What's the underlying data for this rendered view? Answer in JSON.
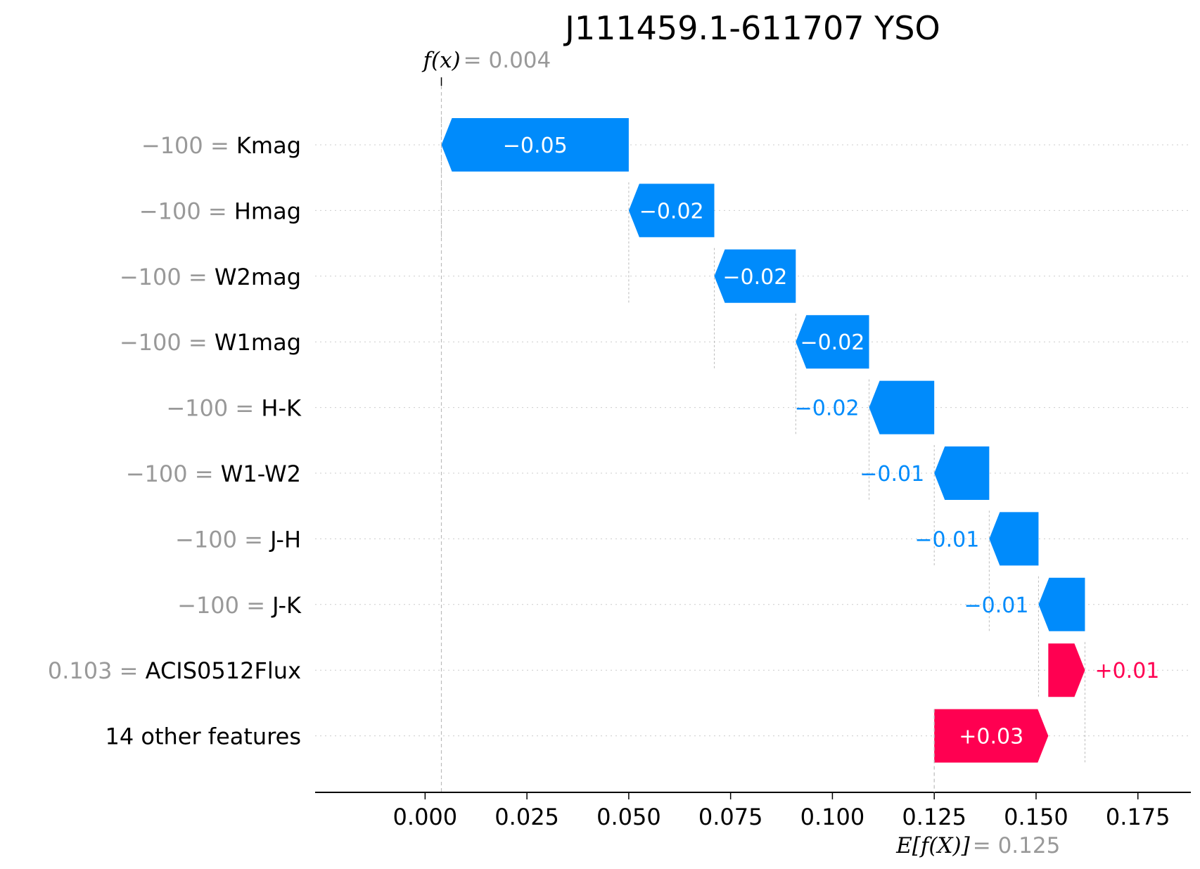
{
  "chart_data": {
    "type": "waterfall",
    "title": "J111459.1-611707 YSO",
    "fx_symbol": "f(x)",
    "fx_value": "0.004",
    "efx_symbol": "E[f(X)]",
    "efx_value": "0.125",
    "base_value": 0.125,
    "final_value": 0.004,
    "xlim": [
      -0.027,
      0.188
    ],
    "xticks": [
      0.0,
      0.025,
      0.05,
      0.075,
      0.1,
      0.125,
      0.15,
      0.175
    ],
    "xtick_labels": [
      "0.000",
      "0.025",
      "0.050",
      "0.075",
      "0.100",
      "0.125",
      "0.150",
      "0.175"
    ],
    "colors": {
      "negative": "#008bfb",
      "positive": "#ff0051"
    },
    "features": [
      {
        "name": "Kmag",
        "value": "−100",
        "start": 0.05,
        "end": 0.004,
        "label": "−0.05",
        "label_inside": true
      },
      {
        "name": "Hmag",
        "value": "−100",
        "start": 0.071,
        "end": 0.05,
        "label": "−0.02",
        "label_inside": true
      },
      {
        "name": "W2mag",
        "value": "−100",
        "start": 0.091,
        "end": 0.071,
        "label": "−0.02",
        "label_inside": true
      },
      {
        "name": "W1mag",
        "value": "−100",
        "start": 0.109,
        "end": 0.091,
        "label": "−0.02",
        "label_inside": true
      },
      {
        "name": "H-K",
        "value": "−100",
        "start": 0.125,
        "end": 0.109,
        "label": "−0.02",
        "label_inside": false
      },
      {
        "name": "W1-W2",
        "value": "−100",
        "start": 0.1385,
        "end": 0.125,
        "label": "−0.01",
        "label_inside": false
      },
      {
        "name": "J-H",
        "value": "−100",
        "start": 0.1506,
        "end": 0.1385,
        "label": "−0.01",
        "label_inside": false
      },
      {
        "name": "J-K",
        "value": "−100",
        "start": 0.162,
        "end": 0.1506,
        "label": "−0.01",
        "label_inside": false
      },
      {
        "name": "ACIS0512Flux",
        "value": "0.103",
        "start": 0.153,
        "end": 0.162,
        "label": "+0.01",
        "label_inside": false
      },
      {
        "name": "14 other features",
        "value": "",
        "start": 0.125,
        "end": 0.153,
        "label": "+0.03",
        "label_inside": true
      }
    ]
  }
}
